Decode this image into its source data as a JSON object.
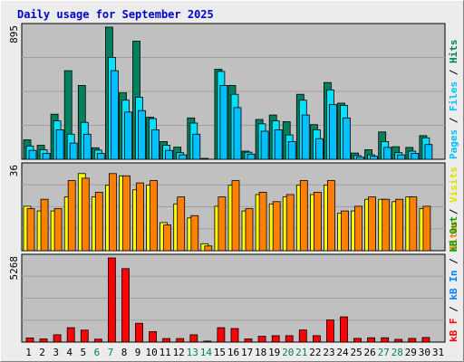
{
  "title": "Daily usage for September 2025",
  "colors": {
    "background": "#ececec",
    "plot": "#c0c0c0",
    "title": "#0000cc",
    "hits": "#00805c",
    "files": "#00e0ff",
    "pages": "#00c0ff",
    "visits": "#ffff00",
    "sites": "#ff8000",
    "kbf": "#ff0000",
    "weekend_day": "#00805c",
    "weekday_day": "#000000"
  },
  "chart_data": [
    {
      "type": "bar",
      "panel": "hits-files-pages",
      "ylabel_series": [
        "Pages",
        "Files",
        "Hits"
      ],
      "ymax_label": "895",
      "ylim": [
        0,
        895
      ],
      "categories": [
        "1",
        "2",
        "3",
        "4",
        "5",
        "6",
        "7",
        "8",
        "9",
        "10",
        "11",
        "12",
        "13",
        "14",
        "15",
        "16",
        "17",
        "18",
        "19",
        "20",
        "21",
        "22",
        "23",
        "24",
        "25",
        "26",
        "27",
        "28",
        "29",
        "30",
        "31"
      ],
      "weekend_days": [
        "6",
        "7",
        "13",
        "14",
        "20",
        "21",
        "27",
        "28"
      ],
      "series": [
        {
          "name": "Hits",
          "values": [
            132,
            95,
            305,
            600,
            500,
            78,
            895,
            450,
            800,
            285,
            120,
            82,
            280,
            3,
            610,
            500,
            55,
            270,
            300,
            255,
            440,
            235,
            520,
            380,
            42,
            65,
            185,
            85,
            80,
            160,
            0
          ]
        },
        {
          "name": "Files",
          "values": [
            90,
            65,
            260,
            170,
            250,
            62,
            690,
            400,
            420,
            275,
            95,
            45,
            245,
            0,
            595,
            440,
            48,
            240,
            260,
            165,
            400,
            200,
            470,
            365,
            25,
            30,
            120,
            45,
            55,
            145,
            0
          ]
        },
        {
          "name": "Pages",
          "values": [
            60,
            40,
            200,
            110,
            170,
            40,
            600,
            320,
            330,
            200,
            60,
            30,
            170,
            0,
            500,
            350,
            35,
            190,
            200,
            120,
            300,
            140,
            370,
            280,
            15,
            20,
            80,
            30,
            40,
            100,
            0
          ]
        }
      ]
    },
    {
      "type": "bar",
      "panel": "visits-sites",
      "ylabel_series": [
        "Sites",
        "Visits"
      ],
      "ymax_label": "36",
      "ylim": [
        0,
        36
      ],
      "categories": [
        "1",
        "2",
        "3",
        "4",
        "5",
        "6",
        "7",
        "8",
        "9",
        "10",
        "11",
        "12",
        "13",
        "14",
        "15",
        "16",
        "17",
        "18",
        "19",
        "20",
        "21",
        "22",
        "23",
        "24",
        "25",
        "26",
        "27",
        "28",
        "29",
        "30",
        "31"
      ],
      "series": [
        {
          "name": "Visits",
          "values": [
            19,
            17,
            17,
            23,
            33,
            23,
            28,
            32,
            26,
            28,
            12,
            20,
            14,
            3,
            19,
            28,
            17,
            24,
            20,
            23,
            28,
            24,
            28,
            16,
            17,
            22,
            22,
            21,
            23,
            18,
            0
          ]
        },
        {
          "name": "Sites",
          "values": [
            18,
            22,
            18,
            30,
            31,
            25,
            33,
            32,
            29,
            30,
            11,
            23,
            15,
            2,
            23,
            30,
            18,
            25,
            21,
            24,
            30,
            25,
            30,
            17,
            19,
            23,
            22,
            22,
            23,
            19,
            0
          ]
        }
      ]
    },
    {
      "type": "bar",
      "panel": "kbytes",
      "ylabel_series": [
        "kB F",
        "kB In",
        "kB Out"
      ],
      "ymax_label": "5268",
      "ylim": [
        0,
        5268
      ],
      "categories": [
        "1",
        "2",
        "3",
        "4",
        "5",
        "6",
        "7",
        "8",
        "9",
        "10",
        "11",
        "12",
        "13",
        "14",
        "15",
        "16",
        "17",
        "18",
        "19",
        "20",
        "21",
        "22",
        "23",
        "24",
        "25",
        "26",
        "27",
        "28",
        "29",
        "30",
        "31"
      ],
      "series": [
        {
          "name": "kB F",
          "values": [
            260,
            200,
            460,
            900,
            750,
            180,
            5268,
            4600,
            1180,
            650,
            220,
            220,
            460,
            60,
            900,
            850,
            200,
            360,
            400,
            400,
            760,
            400,
            1380,
            1580,
            230,
            270,
            270,
            170,
            230,
            290,
            0
          ]
        }
      ]
    }
  ]
}
